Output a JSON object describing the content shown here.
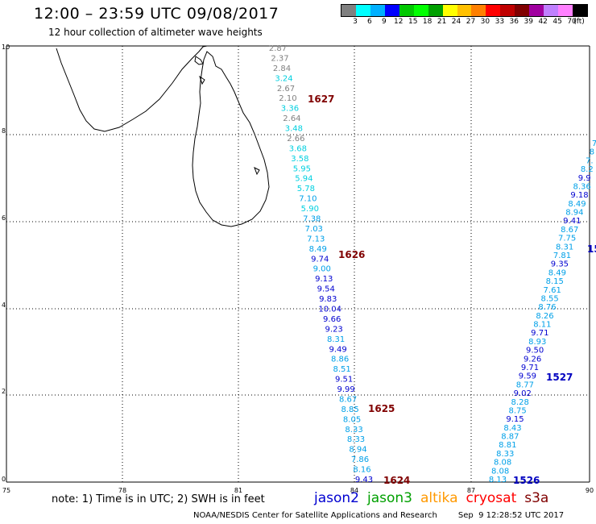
{
  "header": {
    "title": "12:00 – 23:59 UTC 09/08/2017",
    "subtitle": "12 hour collection of altimeter wave heights"
  },
  "legend": {
    "colors": [
      "#808080",
      "#00ffff",
      "#00b0ff",
      "#0000ff",
      "#00c800",
      "#00ff00",
      "#00a000",
      "#ffff00",
      "#ffc000",
      "#ff8000",
      "#ff0000",
      "#c00000",
      "#800000",
      "#a000a0",
      "#c080ff",
      "#ff80ff",
      "#000000"
    ],
    "labels": [
      "3",
      "6",
      "9",
      "12",
      "15",
      "18",
      "21",
      "24",
      "27",
      "30",
      "33",
      "36",
      "39",
      "42",
      "45",
      "70",
      "(ft)"
    ]
  },
  "map": {
    "x_ticks": [
      "75",
      "78",
      "81",
      "84",
      "87",
      "90"
    ],
    "y_ticks": [
      "0",
      "2",
      "4",
      "6",
      "8",
      "10"
    ],
    "passes": [
      {
        "id": "1627",
        "color": "#800000"
      },
      {
        "id": "1626",
        "color": "#800000"
      },
      {
        "id": "1625",
        "color": "#800000"
      },
      {
        "id": "1624",
        "color": "#800000"
      },
      {
        "id": "1527",
        "color": "#0000c0"
      },
      {
        "id": "1526",
        "color": "#0000c0"
      },
      {
        "id": "15",
        "color": "#0000c0"
      }
    ],
    "track_a": [
      {
        "v": "2.87",
        "c": "#808080"
      },
      {
        "v": "2.37",
        "c": "#808080"
      },
      {
        "v": "2.84",
        "c": "#808080"
      },
      {
        "v": "3.24",
        "c": "#00d0e0"
      },
      {
        "v": "2.67",
        "c": "#808080"
      },
      {
        "v": "2.10",
        "c": "#808080"
      },
      {
        "v": "3.36",
        "c": "#00d0e0"
      },
      {
        "v": "2.64",
        "c": "#808080"
      },
      {
        "v": "3.48",
        "c": "#00d0e0"
      },
      {
        "v": "2.66",
        "c": "#808080"
      },
      {
        "v": "3.68",
        "c": "#00d0e0"
      },
      {
        "v": "3.58",
        "c": "#00d0e0"
      },
      {
        "v": "5.95",
        "c": "#00d0e0"
      },
      {
        "v": "5.94",
        "c": "#00d0e0"
      },
      {
        "v": "5.78",
        "c": "#00d0e0"
      },
      {
        "v": "7.10",
        "c": "#00a0e8"
      },
      {
        "v": "5.90",
        "c": "#00d0e0"
      },
      {
        "v": "7.38",
        "c": "#00a0e8"
      },
      {
        "v": "7.03",
        "c": "#00a0e8"
      },
      {
        "v": "7.13",
        "c": "#00a0e8"
      },
      {
        "v": "8.49",
        "c": "#00a0e8"
      },
      {
        "v": "9.74",
        "c": "#0000d0"
      },
      {
        "v": "9.00",
        "c": "#00a0e8"
      },
      {
        "v": "9.13",
        "c": "#0000d0"
      },
      {
        "v": "9.54",
        "c": "#0000d0"
      },
      {
        "v": "9.83",
        "c": "#0000d0"
      },
      {
        "v": "10.04",
        "c": "#0000d0"
      },
      {
        "v": "9.66",
        "c": "#0000d0"
      },
      {
        "v": "9.23",
        "c": "#0000d0"
      },
      {
        "v": "8.31",
        "c": "#00a0e8"
      },
      {
        "v": "9.49",
        "c": "#0000d0"
      },
      {
        "v": "8.86",
        "c": "#00a0e8"
      },
      {
        "v": "8.51",
        "c": "#00a0e8"
      },
      {
        "v": "9.51",
        "c": "#0000d0"
      },
      {
        "v": "9.99",
        "c": "#0000d0"
      },
      {
        "v": "8.67",
        "c": "#00a0e8"
      },
      {
        "v": "8.85",
        "c": "#00a0e8"
      },
      {
        "v": "8.05",
        "c": "#00a0e8"
      },
      {
        "v": "8.33",
        "c": "#00a0e8"
      },
      {
        "v": "8.33",
        "c": "#00a0e8"
      },
      {
        "v": "8.94",
        "c": "#00a0e8"
      },
      {
        "v": "7.86",
        "c": "#00a0e8"
      },
      {
        "v": "8.16",
        "c": "#00a0e8"
      },
      {
        "v": "9.43",
        "c": "#0000d0"
      }
    ],
    "track_b": [
      {
        "v": "7",
        "c": "#00a0e8"
      },
      {
        "v": "8",
        "c": "#00a0e8"
      },
      {
        "v": "7.",
        "c": "#00a0e8"
      },
      {
        "v": "8.2",
        "c": "#00a0e8"
      },
      {
        "v": "9.9",
        "c": "#0000d0"
      },
      {
        "v": "8.36",
        "c": "#00a0e8"
      },
      {
        "v": "9.18",
        "c": "#0000d0"
      },
      {
        "v": "8.49",
        "c": "#00a0e8"
      },
      {
        "v": "8.94",
        "c": "#00a0e8"
      },
      {
        "v": "9.41",
        "c": "#0000d0"
      },
      {
        "v": "8.67",
        "c": "#00a0e8"
      },
      {
        "v": "7.75",
        "c": "#00a0e8"
      },
      {
        "v": "8.31",
        "c": "#00a0e8"
      },
      {
        "v": "7.81",
        "c": "#00a0e8"
      },
      {
        "v": "9.35",
        "c": "#0000d0"
      },
      {
        "v": "8.49",
        "c": "#00a0e8"
      },
      {
        "v": "8.15",
        "c": "#00a0e8"
      },
      {
        "v": "7.61",
        "c": "#00a0e8"
      },
      {
        "v": "8.55",
        "c": "#00a0e8"
      },
      {
        "v": "8.76",
        "c": "#00a0e8"
      },
      {
        "v": "8.26",
        "c": "#00a0e8"
      },
      {
        "v": "8.11",
        "c": "#00a0e8"
      },
      {
        "v": "9.71",
        "c": "#0000d0"
      },
      {
        "v": "8.93",
        "c": "#00a0e8"
      },
      {
        "v": "9.50",
        "c": "#0000d0"
      },
      {
        "v": "9.26",
        "c": "#0000d0"
      },
      {
        "v": "9.71",
        "c": "#0000d0"
      },
      {
        "v": "9.59",
        "c": "#0000d0"
      },
      {
        "v": "8.77",
        "c": "#00a0e8"
      },
      {
        "v": "9.02",
        "c": "#0000d0"
      },
      {
        "v": "8.28",
        "c": "#00a0e8"
      },
      {
        "v": "8.75",
        "c": "#00a0e8"
      },
      {
        "v": "9.15",
        "c": "#0000d0"
      },
      {
        "v": "8.43",
        "c": "#00a0e8"
      },
      {
        "v": "8.87",
        "c": "#00a0e8"
      },
      {
        "v": "8.81",
        "c": "#00a0e8"
      },
      {
        "v": "8.33",
        "c": "#00a0e8"
      },
      {
        "v": "8.08",
        "c": "#00a0e8"
      },
      {
        "v": "8.08",
        "c": "#00a0e8"
      },
      {
        "v": "8.13",
        "c": "#00a0e8"
      }
    ]
  },
  "note": "note: 1) Time is in UTC; 2) SWH is in feet",
  "satellites": [
    {
      "name": "jason2",
      "color": "#0000d0"
    },
    {
      "name": "jason3",
      "color": "#00a000"
    },
    {
      "name": "altika",
      "color": "#ff9900"
    },
    {
      "name": "cryosat",
      "color": "#ff0000"
    },
    {
      "name": "s3a",
      "color": "#800000"
    }
  ],
  "footer": {
    "org": "NOAA/NESDIS Center for Satellite Applications and Research",
    "timestamp": "Sep  9 12:28:52 UTC 2017"
  }
}
